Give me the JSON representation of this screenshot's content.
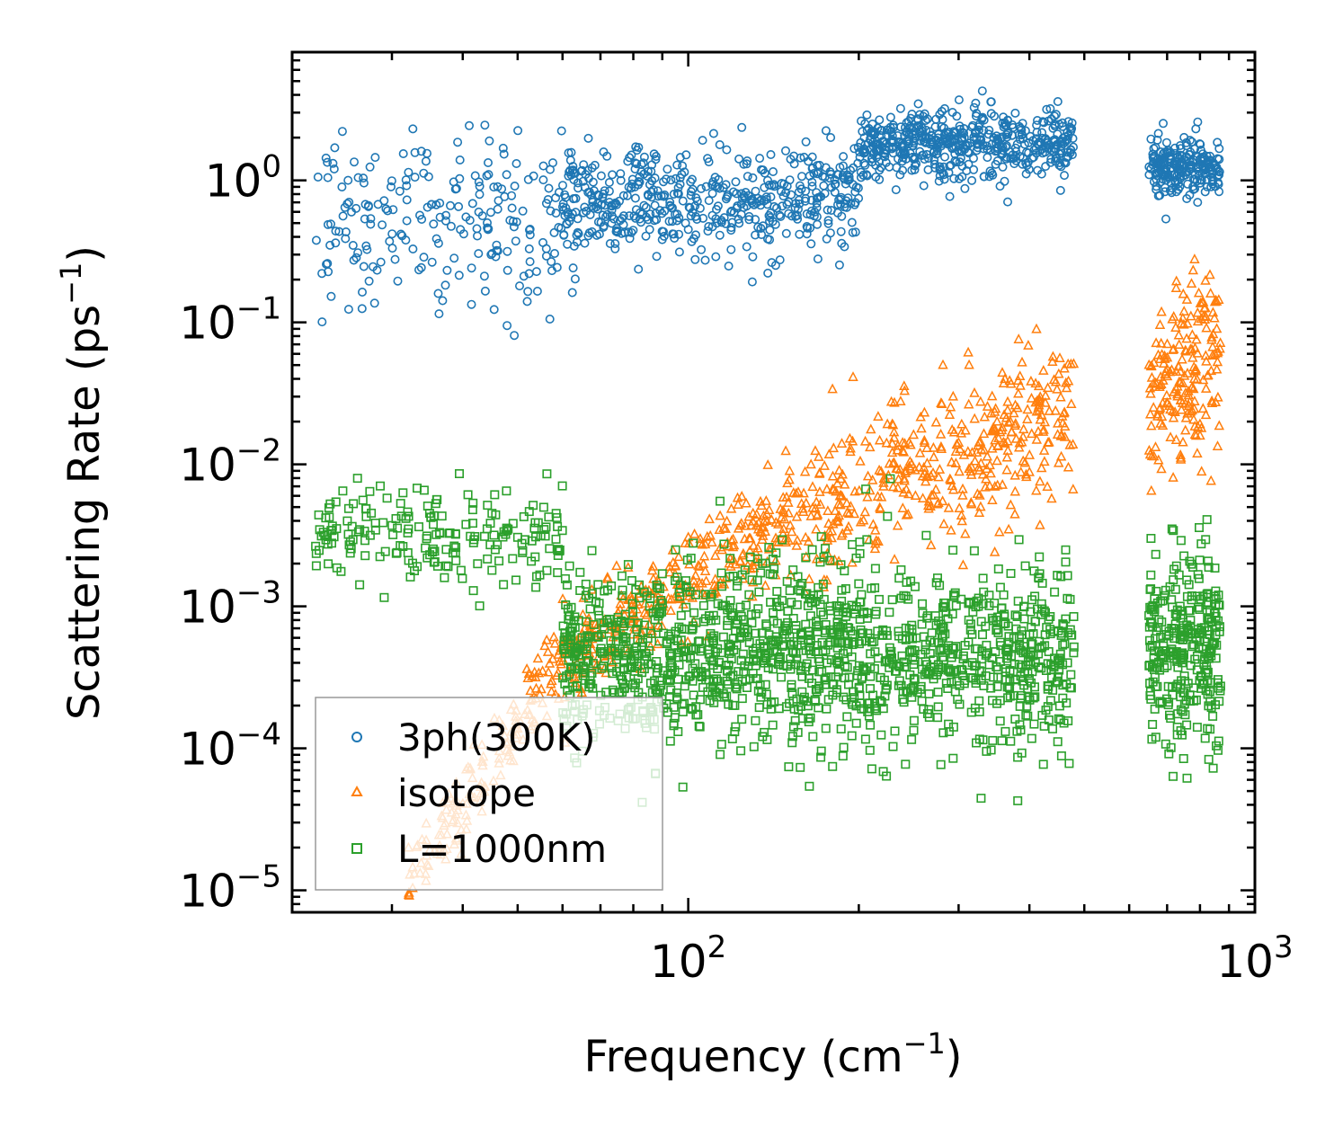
{
  "chart_data": {
    "type": "scatter",
    "title": "",
    "xlabel": "Frequency (cm",
    "xlabel_sup": "−1",
    "xlabel_close": ")",
    "ylabel": "Scattering Rate (ps",
    "ylabel_sup": "−1",
    "ylabel_close": ")",
    "xscale": "log",
    "yscale": "log",
    "xlim": [
      20,
      1000
    ],
    "ylim": [
      7e-06,
      8
    ],
    "x_ticks": [
      {
        "base": "10",
        "exp": "2",
        "value": 100
      },
      {
        "base": "10",
        "exp": "3",
        "value": 1000
      }
    ],
    "y_ticks": [
      {
        "base": "10",
        "exp": "0",
        "value": 1
      },
      {
        "base": "10",
        "exp": "−1",
        "value": 0.1
      },
      {
        "base": "10",
        "exp": "−2",
        "value": 0.01
      },
      {
        "base": "10",
        "exp": "−3",
        "value": 0.001
      },
      {
        "base": "10",
        "exp": "−4",
        "value": 0.0001
      },
      {
        "base": "10",
        "exp": "−5",
        "value": 1e-05
      }
    ],
    "legend_position": "lower-left",
    "series": [
      {
        "name": "3ph(300K)",
        "marker": "circle",
        "color": "#1f77b4",
        "bands": [
          {
            "x_range": [
              22,
              60
            ],
            "y_center_log": -0.3,
            "y_spread_log": 0.55,
            "count": 220
          },
          {
            "x_range": [
              60,
              200
            ],
            "y_center_log": -0.15,
            "y_spread_log": 0.35,
            "count": 520
          },
          {
            "x_range": [
              200,
              480
            ],
            "y_center_log": 0.25,
            "y_spread_log": 0.22,
            "count": 520
          },
          {
            "x_range": [
              650,
              870
            ],
            "y_center_log": 0.1,
            "y_spread_log": 0.2,
            "count": 220
          }
        ]
      },
      {
        "name": "isotope",
        "marker": "triangle",
        "color": "#ff7f0e",
        "bands": [
          {
            "x_range": [
              32,
              60
            ],
            "y_trend_log": [
              -5.0,
              -3.3
            ],
            "y_spread_log": 0.25,
            "count": 160
          },
          {
            "x_range": [
              60,
              160
            ],
            "y_trend_log": [
              -3.4,
              -2.3
            ],
            "y_spread_log": 0.3,
            "count": 320
          },
          {
            "x_range": [
              160,
              480
            ],
            "y_trend_log": [
              -2.4,
              -1.6
            ],
            "y_spread_log": 0.5,
            "count": 420
          },
          {
            "x_range": [
              650,
              870
            ],
            "y_trend_log": [
              -1.6,
              -1.2
            ],
            "y_spread_log": 0.6,
            "count": 200
          }
        ]
      },
      {
        "name": "L=1000nm",
        "marker": "square",
        "color": "#2ca02c",
        "bands": [
          {
            "x_range": [
              22,
              60
            ],
            "y_center_log": -2.5,
            "y_spread_log": 0.3,
            "count": 200
          },
          {
            "x_range": [
              60,
              480
            ],
            "y_center_log": -3.35,
            "y_spread_log": 0.6,
            "count": 1400
          },
          {
            "x_range": [
              650,
              870
            ],
            "y_center_log": -3.3,
            "y_spread_log": 0.6,
            "count": 300
          }
        ]
      }
    ]
  }
}
